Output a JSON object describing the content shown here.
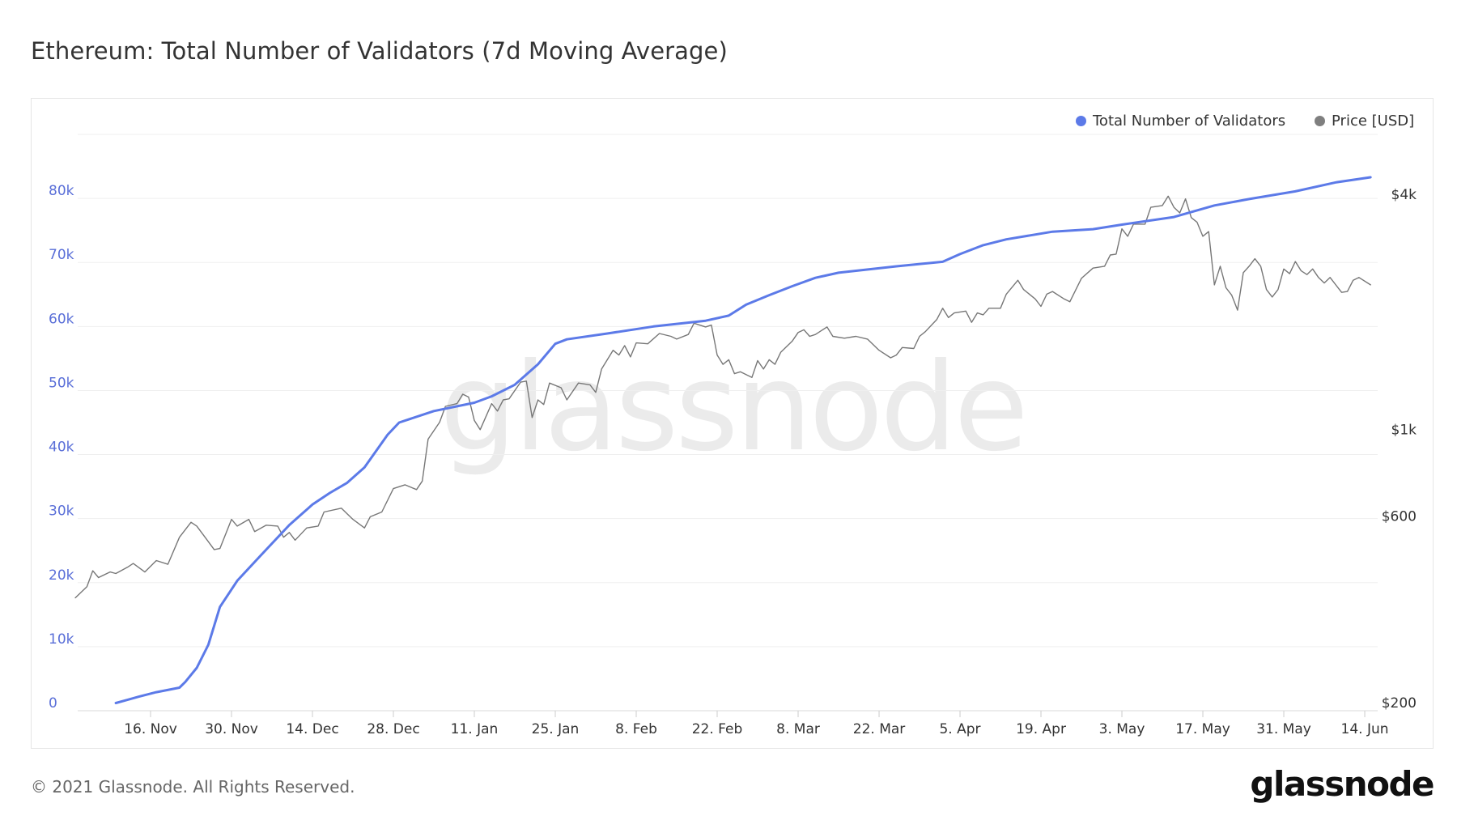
{
  "title": "Ethereum: Total Number of Validators (7d Moving Average)",
  "footer": "© 2021 Glassnode. All Rights Reserved.",
  "logo_text": "glassnode",
  "watermark": "glassnode",
  "colors": {
    "validators": "#5c7ae8",
    "price": "#777777",
    "left_axis": "#5a6fd8",
    "grid": "#efefef"
  },
  "legend": [
    {
      "label": "Total Number of Validators",
      "color": "#5c7ae8"
    },
    {
      "label": "Price [USD]",
      "color": "#7f7f7f"
    }
  ],
  "chart_data": {
    "type": "line",
    "title": "Ethereum: Total Number of Validators (7d Moving Average)",
    "legend_position": "top-right",
    "grid": true,
    "x_tick_labels": [
      "16. Nov",
      "30. Nov",
      "14. Dec",
      "28. Dec",
      "11. Jan",
      "25. Jan",
      "8. Feb",
      "22. Feb",
      "8. Mar",
      "22. Mar",
      "5. Apr",
      "19. Apr",
      "3. May",
      "17. May",
      "31. May",
      "14. Jun"
    ],
    "x_ticks": [
      "2020-11-16",
      "2020-11-30",
      "2020-12-14",
      "2020-12-28",
      "2021-01-11",
      "2021-01-25",
      "2021-02-08",
      "2021-02-22",
      "2021-03-08",
      "2021-03-22",
      "2021-04-05",
      "2021-04-19",
      "2021-05-03",
      "2021-05-17",
      "2021-05-31",
      "2021-06-14"
    ],
    "left_axis": {
      "scale": "linear",
      "range": [
        0,
        90000
      ],
      "ticks": [
        0,
        10000,
        20000,
        30000,
        40000,
        50000,
        60000,
        70000,
        80000
      ],
      "tick_labels": [
        "0",
        "10k",
        "20k",
        "30k",
        "40k",
        "50k",
        "60k",
        "70k",
        "80k"
      ]
    },
    "right_axis": {
      "scale": "log",
      "ticks": [
        200,
        600,
        1000,
        4000
      ],
      "tick_labels": [
        "$200",
        "$600",
        "$1k",
        "$4k"
      ]
    },
    "series": [
      {
        "name": "Total Number of Validators",
        "axis": "left",
        "points": [
          [
            "2020-11-10",
            1200
          ],
          [
            "2020-11-12",
            1700
          ],
          [
            "2020-11-14",
            2200
          ],
          [
            "2020-11-17",
            2900
          ],
          [
            "2020-11-21",
            3600
          ],
          [
            "2020-11-22",
            4500
          ],
          [
            "2020-11-24",
            6700
          ],
          [
            "2020-11-26",
            10300
          ],
          [
            "2020-11-28",
            16200
          ],
          [
            "2020-12-01",
            20300
          ],
          [
            "2020-12-05",
            24200
          ],
          [
            "2020-12-10",
            29000
          ],
          [
            "2020-12-14",
            32200
          ],
          [
            "2020-12-17",
            34000
          ],
          [
            "2020-12-20",
            35600
          ],
          [
            "2020-12-23",
            38000
          ],
          [
            "2020-12-27",
            43100
          ],
          [
            "2020-12-29",
            45000
          ],
          [
            "2021-01-04",
            46800
          ],
          [
            "2021-01-11",
            48100
          ],
          [
            "2021-01-14",
            49100
          ],
          [
            "2021-01-18",
            50900
          ],
          [
            "2021-01-22",
            54100
          ],
          [
            "2021-01-25",
            57300
          ],
          [
            "2021-01-27",
            58000
          ],
          [
            "2021-02-03",
            58900
          ],
          [
            "2021-02-11",
            60000
          ],
          [
            "2021-02-20",
            60900
          ],
          [
            "2021-02-24",
            61700
          ],
          [
            "2021-02-27",
            63400
          ],
          [
            "2021-03-03",
            64900
          ],
          [
            "2021-03-07",
            66300
          ],
          [
            "2021-03-11",
            67600
          ],
          [
            "2021-03-15",
            68400
          ],
          [
            "2021-03-25",
            69400
          ],
          [
            "2021-04-02",
            70100
          ],
          [
            "2021-04-05",
            71300
          ],
          [
            "2021-04-09",
            72700
          ],
          [
            "2021-04-13",
            73600
          ],
          [
            "2021-04-21",
            74800
          ],
          [
            "2021-04-28",
            75200
          ],
          [
            "2021-05-03",
            75900
          ],
          [
            "2021-05-12",
            77100
          ],
          [
            "2021-05-19",
            78900
          ],
          [
            "2021-05-25",
            79900
          ],
          [
            "2021-06-02",
            81100
          ],
          [
            "2021-06-09",
            82500
          ],
          [
            "2021-06-15",
            83300
          ]
        ]
      },
      {
        "name": "Price [USD]",
        "axis": "right",
        "points": [
          [
            "2020-11-03",
            371
          ],
          [
            "2020-11-05",
            396
          ],
          [
            "2020-11-06",
            435
          ],
          [
            "2020-11-07",
            418
          ],
          [
            "2020-11-09",
            432
          ],
          [
            "2020-11-10",
            428
          ],
          [
            "2020-11-12",
            444
          ],
          [
            "2020-11-13",
            454
          ],
          [
            "2020-11-15",
            432
          ],
          [
            "2020-11-17",
            462
          ],
          [
            "2020-11-19",
            452
          ],
          [
            "2020-11-21",
            530
          ],
          [
            "2020-11-23",
            579
          ],
          [
            "2020-11-24",
            566
          ],
          [
            "2020-11-27",
            493
          ],
          [
            "2020-11-28",
            496
          ],
          [
            "2020-11-30",
            589
          ],
          [
            "2020-12-01",
            566
          ],
          [
            "2020-12-03",
            589
          ],
          [
            "2020-12-04",
            548
          ],
          [
            "2020-12-06",
            569
          ],
          [
            "2020-12-08",
            566
          ],
          [
            "2020-12-09",
            530
          ],
          [
            "2020-12-10",
            545
          ],
          [
            "2020-12-11",
            521
          ],
          [
            "2020-12-13",
            560
          ],
          [
            "2020-12-15",
            566
          ],
          [
            "2020-12-16",
            615
          ],
          [
            "2020-12-19",
            629
          ],
          [
            "2020-12-21",
            589
          ],
          [
            "2020-12-23",
            560
          ],
          [
            "2020-12-24",
            598
          ],
          [
            "2020-12-26",
            615
          ],
          [
            "2020-12-28",
            706
          ],
          [
            "2020-12-30",
            722
          ],
          [
            "2021-01-01",
            702
          ],
          [
            "2021-01-02",
            738
          ],
          [
            "2021-01-03",
            945
          ],
          [
            "2021-01-05",
            1044
          ],
          [
            "2021-01-06",
            1146
          ],
          [
            "2021-01-08",
            1165
          ],
          [
            "2021-01-09",
            1231
          ],
          [
            "2021-01-10",
            1211
          ],
          [
            "2021-01-11",
            1055
          ],
          [
            "2021-01-12",
            999
          ],
          [
            "2021-01-14",
            1165
          ],
          [
            "2021-01-15",
            1115
          ],
          [
            "2021-01-16",
            1191
          ],
          [
            "2021-01-17",
            1198
          ],
          [
            "2021-01-19",
            1322
          ],
          [
            "2021-01-20",
            1330
          ],
          [
            "2021-01-21",
            1073
          ],
          [
            "2021-01-22",
            1191
          ],
          [
            "2021-01-23",
            1159
          ],
          [
            "2021-01-24",
            1315
          ],
          [
            "2021-01-26",
            1279
          ],
          [
            "2021-01-27",
            1191
          ],
          [
            "2021-01-29",
            1315
          ],
          [
            "2021-01-31",
            1301
          ],
          [
            "2021-02-01",
            1245
          ],
          [
            "2021-02-02",
            1428
          ],
          [
            "2021-02-04",
            1595
          ],
          [
            "2021-02-05",
            1551
          ],
          [
            "2021-02-06",
            1639
          ],
          [
            "2021-02-07",
            1534
          ],
          [
            "2021-02-08",
            1666
          ],
          [
            "2021-02-10",
            1657
          ],
          [
            "2021-02-12",
            1761
          ],
          [
            "2021-02-14",
            1732
          ],
          [
            "2021-02-15",
            1704
          ],
          [
            "2021-02-17",
            1751
          ],
          [
            "2021-02-18",
            1871
          ],
          [
            "2021-02-20",
            1830
          ],
          [
            "2021-02-21",
            1850
          ],
          [
            "2021-02-22",
            1551
          ],
          [
            "2021-02-23",
            1468
          ],
          [
            "2021-02-24",
            1509
          ],
          [
            "2021-02-25",
            1390
          ],
          [
            "2021-02-26",
            1405
          ],
          [
            "2021-02-28",
            1359
          ],
          [
            "2021-03-01",
            1501
          ],
          [
            "2021-03-02",
            1428
          ],
          [
            "2021-03-03",
            1509
          ],
          [
            "2021-03-04",
            1468
          ],
          [
            "2021-03-05",
            1577
          ],
          [
            "2021-03-07",
            1685
          ],
          [
            "2021-03-08",
            1771
          ],
          [
            "2021-03-09",
            1800
          ],
          [
            "2021-03-10",
            1732
          ],
          [
            "2021-03-11",
            1751
          ],
          [
            "2021-03-13",
            1830
          ],
          [
            "2021-03-14",
            1732
          ],
          [
            "2021-03-16",
            1713
          ],
          [
            "2021-03-18",
            1732
          ],
          [
            "2021-03-20",
            1704
          ],
          [
            "2021-03-22",
            1595
          ],
          [
            "2021-03-24",
            1526
          ],
          [
            "2021-03-25",
            1551
          ],
          [
            "2021-03-26",
            1621
          ],
          [
            "2021-03-28",
            1612
          ],
          [
            "2021-03-29",
            1732
          ],
          [
            "2021-03-30",
            1780
          ],
          [
            "2021-04-01",
            1913
          ],
          [
            "2021-04-02",
            2043
          ],
          [
            "2021-04-03",
            1934
          ],
          [
            "2021-04-04",
            1988
          ],
          [
            "2021-04-06",
            2010
          ],
          [
            "2021-04-07",
            1881
          ],
          [
            "2021-04-08",
            1988
          ],
          [
            "2021-04-09",
            1966
          ],
          [
            "2021-04-10",
            2043
          ],
          [
            "2021-04-12",
            2043
          ],
          [
            "2021-04-13",
            2220
          ],
          [
            "2021-04-15",
            2410
          ],
          [
            "2021-04-16",
            2281
          ],
          [
            "2021-04-18",
            2159
          ],
          [
            "2021-04-19",
            2066
          ],
          [
            "2021-04-20",
            2220
          ],
          [
            "2021-04-21",
            2256
          ],
          [
            "2021-04-23",
            2159
          ],
          [
            "2021-04-24",
            2123
          ],
          [
            "2021-04-26",
            2437
          ],
          [
            "2021-04-28",
            2589
          ],
          [
            "2021-04-30",
            2617
          ],
          [
            "2021-05-01",
            2797
          ],
          [
            "2021-05-02",
            2812
          ],
          [
            "2021-05-03",
            3263
          ],
          [
            "2021-05-04",
            3123
          ],
          [
            "2021-05-05",
            3354
          ],
          [
            "2021-05-07",
            3354
          ],
          [
            "2021-05-08",
            3704
          ],
          [
            "2021-05-10",
            3744
          ],
          [
            "2021-05-11",
            3956
          ],
          [
            "2021-05-12",
            3704
          ],
          [
            "2021-05-13",
            3584
          ],
          [
            "2021-05-14",
            3892
          ],
          [
            "2021-05-15",
            3486
          ],
          [
            "2021-05-16",
            3392
          ],
          [
            "2021-05-17",
            3123
          ],
          [
            "2021-05-18",
            3210
          ],
          [
            "2021-05-19",
            2345
          ],
          [
            "2021-05-20",
            2617
          ],
          [
            "2021-05-21",
            2306
          ],
          [
            "2021-05-22",
            2207
          ],
          [
            "2021-05-23",
            2021
          ],
          [
            "2021-05-24",
            2519
          ],
          [
            "2021-05-25",
            2617
          ],
          [
            "2021-05-26",
            2736
          ],
          [
            "2021-05-27",
            2617
          ],
          [
            "2021-05-28",
            2281
          ],
          [
            "2021-05-29",
            2183
          ],
          [
            "2021-05-30",
            2281
          ],
          [
            "2021-05-31",
            2575
          ],
          [
            "2021-06-01",
            2505
          ],
          [
            "2021-06-02",
            2691
          ],
          [
            "2021-06-03",
            2547
          ],
          [
            "2021-06-04",
            2492
          ],
          [
            "2021-06-05",
            2575
          ],
          [
            "2021-06-06",
            2450
          ],
          [
            "2021-06-07",
            2371
          ],
          [
            "2021-06-08",
            2450
          ],
          [
            "2021-06-10",
            2244
          ],
          [
            "2021-06-11",
            2256
          ],
          [
            "2021-06-12",
            2410
          ],
          [
            "2021-06-13",
            2450
          ],
          [
            "2021-06-15",
            2345
          ]
        ]
      }
    ]
  }
}
